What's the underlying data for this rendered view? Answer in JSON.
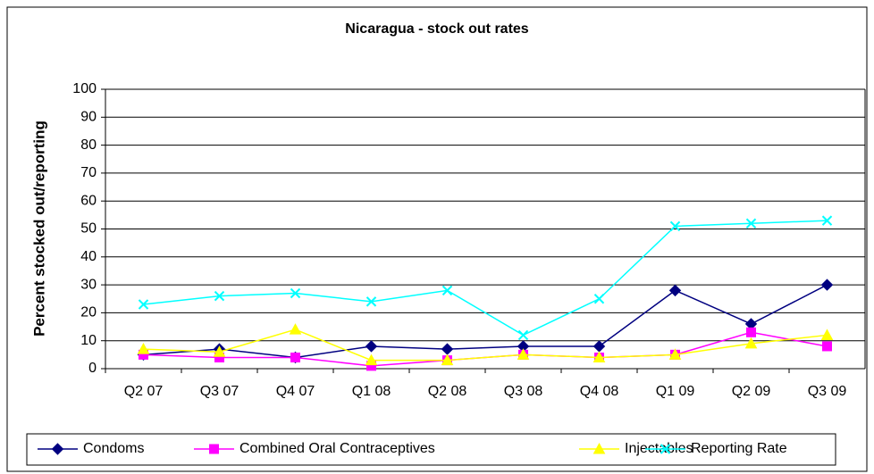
{
  "chart_data": {
    "type": "line",
    "title": "Nicaragua - stock out rates",
    "y_label": "Percent stocked out/reporting",
    "categories": [
      "Q2 07",
      "Q3 07",
      "Q4 07",
      "Q1 08",
      "Q2 08",
      "Q3 08",
      "Q4 08",
      "Q1 09",
      "Q2 09",
      "Q3 09"
    ],
    "series": [
      {
        "name": "Condoms",
        "color": "#000080",
        "marker": "diamond",
        "values": [
          5,
          7,
          4,
          8,
          7,
          8,
          8,
          28,
          16,
          30
        ]
      },
      {
        "name": "Combined Oral Contraceptives",
        "color": "#ff00ff",
        "marker": "square",
        "values": [
          5,
          4,
          4,
          1,
          3,
          5,
          4,
          5,
          13,
          8
        ]
      },
      {
        "name": "Injectables",
        "color": "#ffff00",
        "marker": "triangle",
        "values": [
          7,
          6,
          14,
          3,
          3,
          5,
          4,
          5,
          9,
          12
        ]
      },
      {
        "name": "Reporting Rate",
        "color": "#00ffff",
        "marker": "x",
        "values": [
          23,
          26,
          27,
          24,
          28,
          12,
          25,
          51,
          52,
          53
        ]
      }
    ],
    "ylim": [
      0,
      100
    ],
    "yticks": [
      0,
      10,
      20,
      30,
      40,
      50,
      60,
      70,
      80,
      90,
      100
    ],
    "grid": true,
    "legend": "bottom"
  }
}
